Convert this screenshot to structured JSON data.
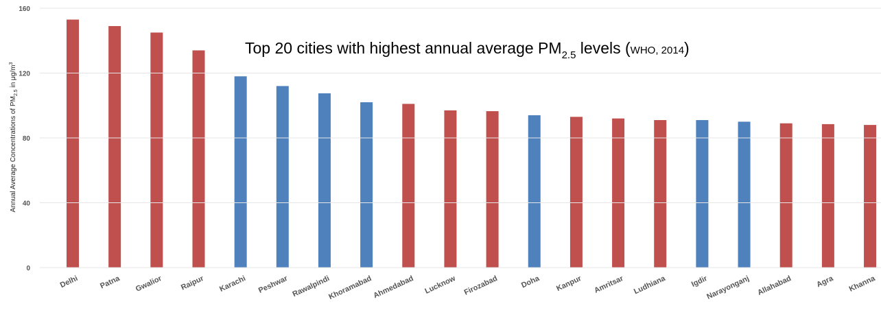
{
  "chart_data": {
    "type": "bar",
    "title": [
      "Top 20 cities with highest annual average PM",
      "2.5",
      " levels (",
      "WHO, 2014",
      ")"
    ],
    "ylabel": [
      "Annual Average Concentrations of PM",
      "2.5",
      " in μg/m",
      "3"
    ],
    "categories": [
      "Delhi",
      "Patna",
      "Gwalior",
      "Raipur",
      "Karachi",
      "Peshwar",
      "Rawalpindi",
      "Khoramabad",
      "Ahmedabad",
      "Lucknow",
      "Firozabad",
      "Doha",
      "Kanpur",
      "Amritsar",
      "Ludhiana",
      "Igdir",
      "Narayonganj",
      "Allahabad",
      "Agra",
      "Khanna"
    ],
    "values": [
      153,
      149,
      145,
      134,
      118,
      112,
      107.5,
      102,
      101,
      97,
      96.5,
      94,
      93,
      92,
      91,
      91,
      90,
      89,
      88.5,
      88
    ],
    "colors": [
      "#c0504d",
      "#c0504d",
      "#c0504d",
      "#c0504d",
      "#4f81bd",
      "#4f81bd",
      "#4f81bd",
      "#4f81bd",
      "#c0504d",
      "#c0504d",
      "#c0504d",
      "#4f81bd",
      "#c0504d",
      "#c0504d",
      "#c0504d",
      "#4f81bd",
      "#4f81bd",
      "#c0504d",
      "#c0504d",
      "#c0504d"
    ],
    "ylim": [
      0,
      160
    ],
    "yticks": [
      0,
      40,
      80,
      120,
      160
    ],
    "grid": true
  }
}
